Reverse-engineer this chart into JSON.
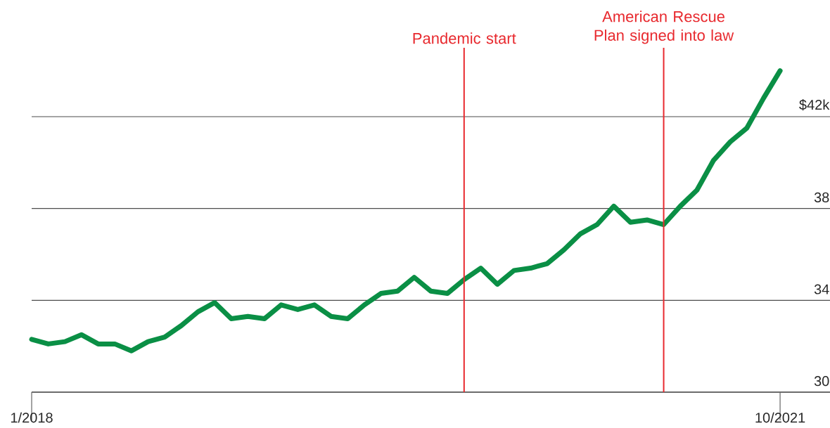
{
  "chart_data": {
    "type": "line",
    "x": [
      "2018-01",
      "2018-02",
      "2018-03",
      "2018-04",
      "2018-05",
      "2018-06",
      "2018-07",
      "2018-08",
      "2018-09",
      "2018-10",
      "2018-11",
      "2018-12",
      "2019-01",
      "2019-02",
      "2019-03",
      "2019-04",
      "2019-05",
      "2019-06",
      "2019-07",
      "2019-08",
      "2019-09",
      "2019-10",
      "2019-11",
      "2019-12",
      "2020-01",
      "2020-02",
      "2020-03",
      "2020-04",
      "2020-05",
      "2020-06",
      "2020-07",
      "2020-08",
      "2020-09",
      "2020-10",
      "2020-11",
      "2020-12",
      "2021-01",
      "2021-02",
      "2021-03",
      "2021-04",
      "2021-05",
      "2021-06",
      "2021-07",
      "2021-08",
      "2021-09",
      "2021-10"
    ],
    "series": [
      {
        "color": "#0a8f45",
        "values": [
          32.3,
          32.1,
          32.2,
          32.5,
          32.1,
          32.1,
          31.8,
          32.2,
          32.4,
          32.9,
          33.5,
          33.9,
          33.2,
          33.3,
          33.2,
          33.8,
          33.6,
          33.8,
          33.3,
          33.2,
          33.8,
          34.3,
          34.4,
          35.0,
          34.4,
          34.3,
          34.9,
          35.4,
          34.7,
          35.3,
          35.4,
          35.6,
          36.2,
          36.9,
          37.3,
          38.1,
          37.4,
          37.5,
          37.3,
          38.1,
          38.8,
          40.1,
          40.9,
          41.5,
          42.8,
          44.0
        ]
      }
    ],
    "xlim": [
      "2018-01",
      "2022-01"
    ],
    "xticks": [
      {
        "value": "2018-01",
        "label": "1/2018"
      },
      {
        "value": "2021-10",
        "label": "10/2021"
      }
    ],
    "ylim": [
      30,
      45
    ],
    "yticks": [
      30,
      34,
      38,
      {
        "value": 42,
        "label": "$42k"
      }
    ],
    "grid": "y",
    "marker": "none",
    "line_style": "solid",
    "ref_lines": [
      {
        "axis": "x",
        "value": "2020-03",
        "label": "Pandemic start",
        "color": "#e8292e",
        "line_style": "solid"
      },
      {
        "axis": "x",
        "value": "2021-03",
        "label": "American Rescue Plan signed into law",
        "color": "#e8292e",
        "line_style": "solid"
      }
    ]
  }
}
